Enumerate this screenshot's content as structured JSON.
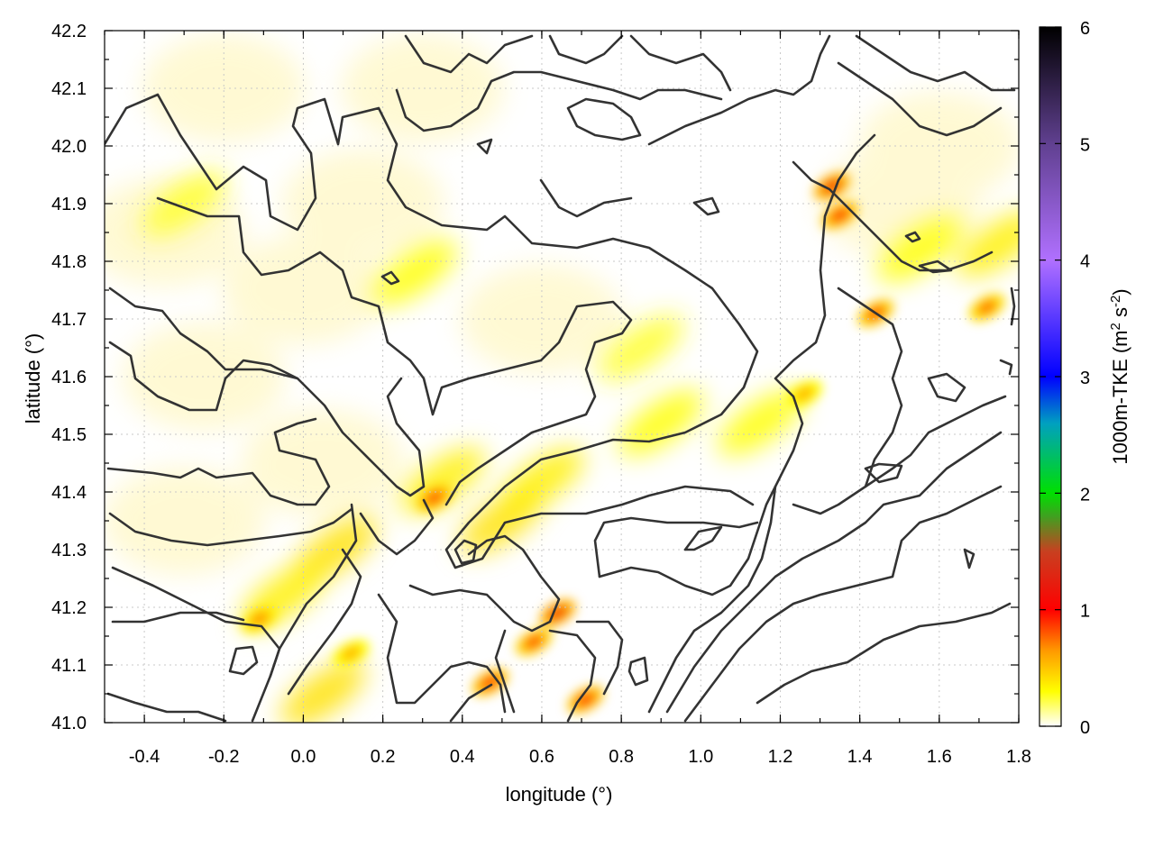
{
  "chart_data": {
    "type": "heatmap",
    "title": "",
    "xlabel": "longitude (°)",
    "ylabel": "latitude (°)",
    "xlim": [
      -0.5,
      1.8
    ],
    "ylim": [
      41.0,
      42.2
    ],
    "xticks": [
      "-0.4",
      "-0.2",
      "0.0",
      "0.2",
      "0.4",
      "0.6",
      "0.8",
      "1.0",
      "1.2",
      "1.4",
      "1.6",
      "1.8"
    ],
    "xtick_values": [
      -0.4,
      -0.2,
      0.0,
      0.2,
      0.4,
      0.6,
      0.8,
      1.0,
      1.2,
      1.4,
      1.6,
      1.8
    ],
    "yticks": [
      "41.0",
      "41.1",
      "41.2",
      "41.3",
      "41.4",
      "41.5",
      "41.6",
      "41.7",
      "41.8",
      "41.9",
      "42.0",
      "42.1",
      "42.2"
    ],
    "ytick_values": [
      41.0,
      41.1,
      41.2,
      41.3,
      41.4,
      41.5,
      41.6,
      41.7,
      41.8,
      41.9,
      42.0,
      42.1,
      42.2
    ],
    "grid": true,
    "colorbar": {
      "label": "1000m-TKE (m2 s-2)",
      "label_main": "1000m-TKE (m",
      "sup1": "2",
      "label_mid": " s",
      "sup2": "-2",
      "label_end": ")",
      "range": [
        0,
        6
      ],
      "ticks": [
        "0",
        "1",
        "2",
        "3",
        "4",
        "5",
        "6"
      ],
      "tick_values": [
        0,
        1,
        2,
        3,
        4,
        5,
        6
      ],
      "colormap": [
        {
          "value": 0.0,
          "color": "#ffffff"
        },
        {
          "value": 0.3,
          "color": "#ffff00"
        },
        {
          "value": 0.65,
          "color": "#ff9900"
        },
        {
          "value": 1.0,
          "color": "#ff0000"
        },
        {
          "value": 1.5,
          "color": "#c84020"
        },
        {
          "value": 1.8,
          "color": "#40a020"
        },
        {
          "value": 2.0,
          "color": "#00e000"
        },
        {
          "value": 2.6,
          "color": "#00a0c0"
        },
        {
          "value": 3.0,
          "color": "#0000ff"
        },
        {
          "value": 4.0,
          "color": "#b070ff"
        },
        {
          "value": 5.0,
          "color": "#604090"
        },
        {
          "value": 6.0,
          "color": "#000000"
        }
      ]
    },
    "high_tke_spots": [
      {
        "lon": 1.33,
        "lat": 41.93,
        "tke": 1.1
      },
      {
        "lon": 1.35,
        "lat": 41.88,
        "tke": 1.0
      },
      {
        "lon": 1.44,
        "lat": 41.71,
        "tke": 0.9
      },
      {
        "lon": 1.72,
        "lat": 41.72,
        "tke": 0.8
      },
      {
        "lon": 1.26,
        "lat": 41.57,
        "tke": 0.6
      },
      {
        "lon": 0.33,
        "lat": 41.39,
        "tke": 0.9
      },
      {
        "lon": 0.64,
        "lat": 41.19,
        "tke": 1.1
      },
      {
        "lon": 0.47,
        "lat": 41.07,
        "tke": 1.0
      },
      {
        "lon": 0.71,
        "lat": 41.04,
        "tke": 1.0
      },
      {
        "lon": 0.58,
        "lat": 41.14,
        "tke": 0.9
      },
      {
        "lon": -0.11,
        "lat": 41.18,
        "tke": 0.7
      },
      {
        "lon": 0.12,
        "lat": 41.12,
        "tke": 0.6
      }
    ],
    "moderate_tke_bands": [
      {
        "lon": 0.35,
        "lat": 41.42,
        "tke": 0.35
      },
      {
        "lon": 0.5,
        "lat": 41.35,
        "tke": 0.4
      },
      {
        "lon": 0.6,
        "lat": 41.42,
        "tke": 0.35
      },
      {
        "lon": 0.9,
        "lat": 41.52,
        "tke": 0.3
      },
      {
        "lon": 1.15,
        "lat": 41.52,
        "tke": 0.3
      },
      {
        "lon": 0.08,
        "lat": 41.3,
        "tke": 0.4
      },
      {
        "lon": -0.05,
        "lat": 41.22,
        "tke": 0.35
      },
      {
        "lon": 0.05,
        "lat": 41.05,
        "tke": 0.4
      },
      {
        "lon": 0.28,
        "lat": 41.78,
        "tke": 0.3
      },
      {
        "lon": -0.3,
        "lat": 41.9,
        "tke": 0.25
      },
      {
        "lon": 1.55,
        "lat": 41.82,
        "tke": 0.3
      },
      {
        "lon": 1.75,
        "lat": 41.83,
        "tke": 0.35
      },
      {
        "lon": 0.85,
        "lat": 41.65,
        "tke": 0.25
      }
    ]
  }
}
